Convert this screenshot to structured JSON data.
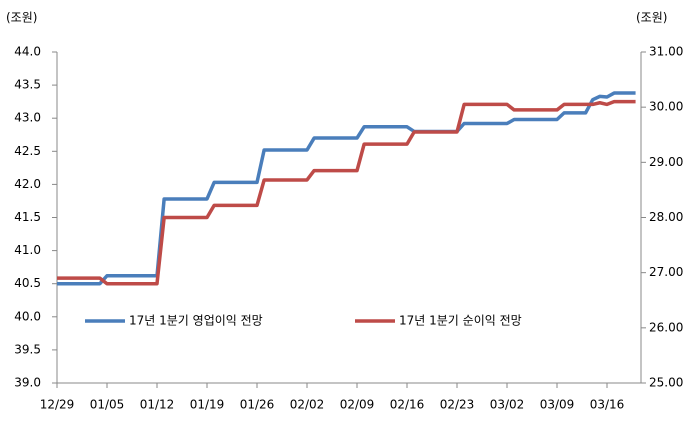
{
  "chart_data": {
    "type": "line",
    "y_label": "(조원)",
    "y2_label": "(조원)",
    "categories": [
      "12/29",
      null,
      null,
      null,
      null,
      null,
      null,
      "01/05",
      null,
      null,
      null,
      null,
      null,
      null,
      "01/12",
      null,
      null,
      null,
      null,
      null,
      null,
      "01/19",
      null,
      null,
      null,
      null,
      null,
      null,
      "01/26",
      null,
      null,
      null,
      null,
      null,
      null,
      "02/02",
      null,
      null,
      null,
      null,
      null,
      null,
      "02/09",
      null,
      null,
      null,
      null,
      null,
      null,
      "02/16",
      null,
      null,
      null,
      null,
      null,
      null,
      "02/23",
      null,
      null,
      null,
      null,
      null,
      null,
      "03/02",
      null,
      null,
      null,
      null,
      null,
      null,
      "03/09",
      null,
      null,
      null,
      null,
      null,
      null,
      "03/16",
      null,
      null,
      null,
      null
    ],
    "series": [
      {
        "name": "17년 1분기 영업이익 전망",
        "color": "#4a7ebb",
        "axis": "y",
        "values": [
          40.5,
          40.5,
          40.5,
          40.5,
          40.5,
          40.5,
          40.5,
          40.62,
          40.62,
          40.62,
          40.62,
          40.62,
          40.62,
          40.62,
          40.62,
          41.78,
          41.78,
          41.78,
          41.78,
          41.78,
          41.78,
          41.78,
          42.03,
          42.03,
          42.03,
          42.03,
          42.03,
          42.03,
          42.03,
          42.52,
          42.52,
          42.52,
          42.52,
          42.52,
          42.52,
          42.52,
          42.7,
          42.7,
          42.7,
          42.7,
          42.7,
          42.7,
          42.7,
          42.87,
          42.87,
          42.87,
          42.87,
          42.87,
          42.87,
          42.87,
          42.8,
          42.8,
          42.8,
          42.8,
          42.8,
          42.8,
          42.8,
          42.92,
          42.92,
          42.92,
          42.92,
          42.92,
          42.92,
          42.92,
          42.98,
          42.98,
          42.98,
          42.98,
          42.98,
          42.98,
          42.98,
          43.08,
          43.08,
          43.08,
          43.08,
          43.28,
          43.33,
          43.32,
          43.38,
          43.38,
          43.38,
          43.38
        ]
      },
      {
        "name": "17년 1분기 순이익 전망",
        "color": "#be4b48",
        "axis": "y2",
        "values": [
          26.9,
          26.9,
          26.9,
          26.9,
          26.9,
          26.9,
          26.9,
          26.8,
          26.8,
          26.8,
          26.8,
          26.8,
          26.8,
          26.8,
          26.8,
          28.0,
          28.0,
          28.0,
          28.0,
          28.0,
          28.0,
          28.0,
          28.22,
          28.22,
          28.22,
          28.22,
          28.22,
          28.22,
          28.22,
          28.68,
          28.68,
          28.68,
          28.68,
          28.68,
          28.68,
          28.68,
          28.85,
          28.85,
          28.85,
          28.85,
          28.85,
          28.85,
          28.85,
          29.33,
          29.33,
          29.33,
          29.33,
          29.33,
          29.33,
          29.33,
          29.55,
          29.55,
          29.55,
          29.55,
          29.55,
          29.55,
          29.55,
          30.05,
          30.05,
          30.05,
          30.05,
          30.05,
          30.05,
          30.05,
          29.95,
          29.95,
          29.95,
          29.95,
          29.95,
          29.95,
          29.95,
          30.05,
          30.05,
          30.05,
          30.05,
          30.05,
          30.08,
          30.05,
          30.1,
          30.1,
          30.1,
          30.1
        ]
      }
    ],
    "ylim": [
      39,
      44
    ],
    "yticks": [
      {
        "value": 39,
        "label": "39.0"
      },
      {
        "value": 39.5,
        "label": "39.5"
      },
      {
        "value": 40,
        "label": "40.0"
      },
      {
        "value": 40.5,
        "label": "40.5"
      },
      {
        "value": 41,
        "label": "41.0"
      },
      {
        "value": 41.5,
        "label": "41.5"
      },
      {
        "value": 42,
        "label": "42.0"
      },
      {
        "value": 42.5,
        "label": "42.5"
      },
      {
        "value": 43,
        "label": "43.0"
      },
      {
        "value": 43.5,
        "label": "43.5"
      },
      {
        "value": 44,
        "label": "44.0"
      }
    ],
    "y2lim": [
      25,
      31
    ],
    "y2ticks": [
      {
        "value": 25,
        "label": "25.00"
      },
      {
        "value": 26,
        "label": "26.00"
      },
      {
        "value": 27,
        "label": "27.00"
      },
      {
        "value": 28,
        "label": "28.00"
      },
      {
        "value": 29,
        "label": "29.00"
      },
      {
        "value": 30,
        "label": "30.00"
      },
      {
        "value": 31,
        "label": "31.00"
      }
    ],
    "grid": false,
    "legend": "inside-bottom"
  }
}
